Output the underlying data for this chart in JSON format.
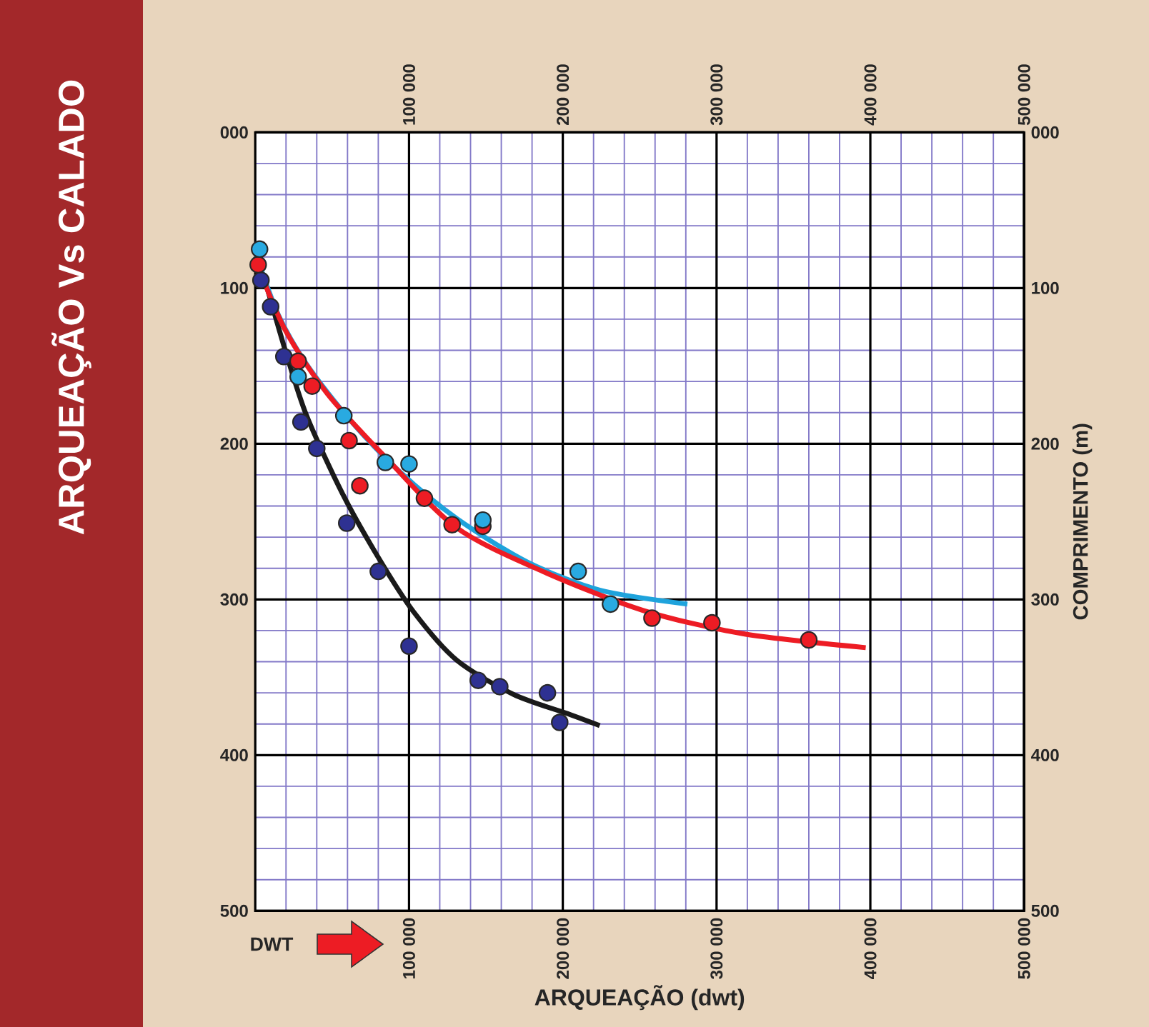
{
  "chart_data": {
    "type": "scatter",
    "title": "ARQUEAÇÃO Vs CALADO",
    "xlabel": "ARQUEAÇÃO (dwt)",
    "y2label": "COMPRIMENTO (m)",
    "annotations": [
      "DWT"
    ],
    "xlim": [
      0,
      500000
    ],
    "xticks": [
      {
        "value": 0,
        "label": null
      },
      {
        "value": 20000,
        "label": null
      },
      {
        "value": 40000,
        "label": null
      },
      {
        "value": 60000,
        "label": null
      },
      {
        "value": 80000,
        "label": null
      },
      {
        "value": 100000,
        "label": "100 000"
      },
      {
        "value": 120000,
        "label": null
      },
      {
        "value": 140000,
        "label": null
      },
      {
        "value": 160000,
        "label": null
      },
      {
        "value": 180000,
        "label": null
      },
      {
        "value": 200000,
        "label": "200 000"
      },
      {
        "value": 220000,
        "label": null
      },
      {
        "value": 240000,
        "label": null
      },
      {
        "value": 260000,
        "label": null
      },
      {
        "value": 280000,
        "label": null
      },
      {
        "value": 300000,
        "label": "300 000"
      },
      {
        "value": 320000,
        "label": null
      },
      {
        "value": 340000,
        "label": null
      },
      {
        "value": 360000,
        "label": null
      },
      {
        "value": 380000,
        "label": null
      },
      {
        "value": 400000,
        "label": "400 000"
      },
      {
        "value": 420000,
        "label": null
      },
      {
        "value": 440000,
        "label": null
      },
      {
        "value": 460000,
        "label": null
      },
      {
        "value": 480000,
        "label": null
      },
      {
        "value": 500000,
        "label": "500 000"
      }
    ],
    "x2lim": [
      0,
      500000
    ],
    "x2ticks": [
      {
        "value": 0,
        "label": null
      },
      {
        "value": 100000,
        "label": "100 000"
      },
      {
        "value": 200000,
        "label": "200 000"
      },
      {
        "value": 300000,
        "label": "300 000"
      },
      {
        "value": 400000,
        "label": "400 000"
      },
      {
        "value": 500000,
        "label": "500 000"
      }
    ],
    "ylim": [
      500,
      0
    ],
    "yticks": [
      {
        "value": 0,
        "label": "000"
      },
      {
        "value": 20,
        "label": null
      },
      {
        "value": 40,
        "label": null
      },
      {
        "value": 60,
        "label": null
      },
      {
        "value": 80,
        "label": null
      },
      100,
      {
        "value": 120,
        "label": null
      },
      {
        "value": 140,
        "label": null
      },
      {
        "value": 160,
        "label": null
      },
      {
        "value": 180,
        "label": null
      },
      200,
      {
        "value": 220,
        "label": null
      },
      {
        "value": 240,
        "label": null
      },
      {
        "value": 260,
        "label": null
      },
      {
        "value": 280,
        "label": null
      },
      300,
      {
        "value": 320,
        "label": null
      },
      {
        "value": 340,
        "label": null
      },
      {
        "value": 360,
        "label": null
      },
      {
        "value": 380,
        "label": null
      },
      400,
      {
        "value": 420,
        "label": null
      },
      {
        "value": 440,
        "label": null
      },
      {
        "value": 460,
        "label": null
      },
      {
        "value": 480,
        "label": null
      },
      500
    ],
    "y2lim": [
      500,
      0
    ],
    "y2ticks": [
      {
        "value": 0,
        "label": "000"
      },
      100,
      200,
      300,
      400,
      500
    ],
    "grid": true,
    "series": [
      {
        "type": "line",
        "marker": "none",
        "color": "#1a1a1a",
        "x": [
          3700,
          7400,
          19500,
          33400,
          56700,
          80000,
          103000,
          131000,
          168000,
          205000,
          224000
        ],
        "values": [
          90,
          99,
          140,
          182,
          232,
          273,
          308,
          339,
          361,
          374,
          381
        ]
      },
      {
        "type": "line",
        "marker": "none",
        "color": "#1ea3dc",
        "x": [
          0,
          14900,
          33400,
          61000,
          94000,
          131000,
          177000,
          224000,
          281000
        ],
        "values": [
          77,
          117,
          149,
          184,
          218,
          248,
          276,
          294,
          303
        ]
      },
      {
        "type": "line",
        "marker": "none",
        "color": "#ed1c24",
        "x": [
          0,
          19500,
          47000,
          85000,
          131000,
          187000,
          252000,
          317000,
          397000
        ],
        "values": [
          81,
          127,
          168,
          209,
          254,
          282,
          307,
          322,
          331
        ]
      },
      {
        "marker": "circle",
        "color": "#2e3192",
        "x": [
          3700,
          10000,
          18600,
          29700,
          40000,
          59500,
          80000,
          100000,
          145000,
          159000,
          190000,
          198000
        ],
        "values": [
          95,
          112,
          144,
          186,
          203,
          251,
          282,
          330,
          352,
          356,
          360,
          379
        ]
      },
      {
        "marker": "circle",
        "color": "#ed1c24",
        "x": [
          1900,
          27900,
          37000,
          61000,
          68000,
          110000,
          128000,
          148000,
          258000,
          297000,
          360000
        ],
        "values": [
          85,
          147,
          163,
          198,
          227,
          235,
          252,
          253,
          312,
          315,
          326
        ]
      },
      {
        "marker": "circle",
        "color": "#29aae1",
        "x": [
          2800,
          27900,
          57600,
          84600,
          100000,
          148000,
          210000,
          231000
        ],
        "values": [
          75,
          157,
          182,
          212,
          213,
          249,
          282,
          303
        ]
      }
    ]
  }
}
